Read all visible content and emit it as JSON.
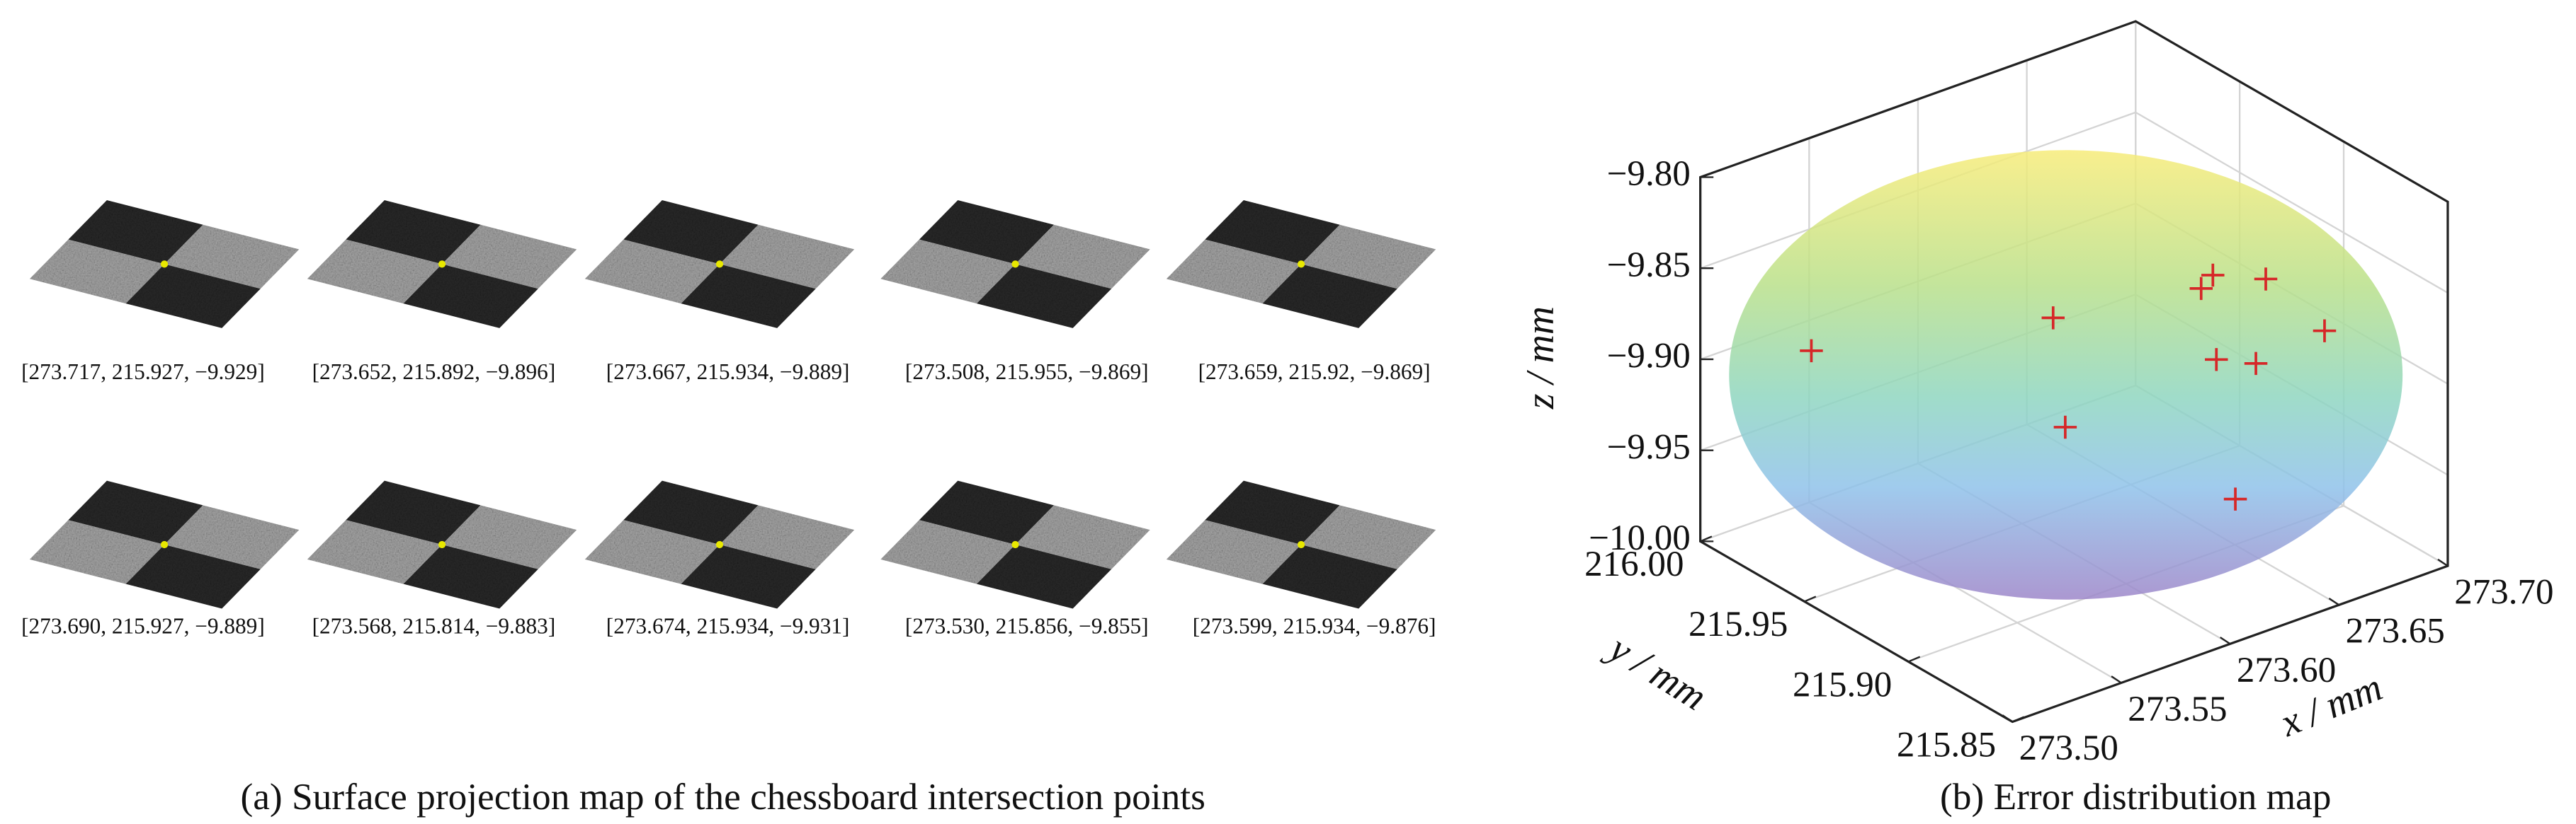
{
  "panel_a": {
    "caption": "(a) Surface projection map of the chessboard intersection points",
    "images": [
      {
        "label": "[273.717, 215.927, −9.929]"
      },
      {
        "label": "[273.652, 215.892, −9.896]"
      },
      {
        "label": "[273.667, 215.934, −9.889]"
      },
      {
        "label": "[273.508, 215.955, −9.869]"
      },
      {
        "label": "[273.659, 215.92, −9.869]"
      },
      {
        "label": "[273.690, 215.927, −9.889]"
      },
      {
        "label": "[273.568, 215.814, −9.883]"
      },
      {
        "label": "[273.674, 215.934, −9.931]"
      },
      {
        "label": "[273.530, 215.856, −9.855]"
      },
      {
        "label": "[273.599, 215.934, −9.876]"
      }
    ]
  },
  "chart_data": {
    "type": "scatter3d",
    "caption": "(b) Error distribution map",
    "xlabel": "x / mm",
    "ylabel": "y / mm",
    "zlabel": "z / mm",
    "series": [
      {
        "color": "#d62728",
        "x": [
          273.717,
          273.652,
          273.667,
          273.508,
          273.659,
          273.69,
          273.568,
          273.674,
          273.53,
          273.599
        ],
        "y": [
          215.927,
          215.892,
          215.934,
          215.955,
          215.92,
          215.927,
          215.814,
          215.934,
          215.856,
          215.934
        ],
        "z": [
          -9.929,
          -9.896,
          -9.889,
          -9.869,
          -9.869,
          -9.889,
          -9.883,
          -9.931,
          -9.855,
          -9.876
        ]
      }
    ],
    "xlim": [
      273.5,
      273.7
    ],
    "ylim": [
      215.85,
      216
    ],
    "zlim": [
      -10,
      -9.8
    ],
    "xticks": [
      {
        "value": 273.5,
        "label": "273.50"
      },
      273.55,
      {
        "value": 273.6,
        "label": "273.60"
      },
      273.65,
      {
        "value": 273.7,
        "label": "273.70"
      }
    ],
    "yticks": [
      {
        "value": 216,
        "label": "216.00"
      },
      215.95,
      {
        "value": 215.9,
        "label": "215.90"
      },
      215.85
    ],
    "zticks": [
      {
        "value": -9.8,
        "label": "−9.80"
      },
      {
        "value": -9.85,
        "label": "−9.85"
      },
      {
        "value": -9.9,
        "label": "−9.90"
      },
      {
        "value": -9.95,
        "label": "−9.95"
      },
      {
        "value": -10,
        "label": "−10.00"
      }
    ],
    "grid": true
  }
}
